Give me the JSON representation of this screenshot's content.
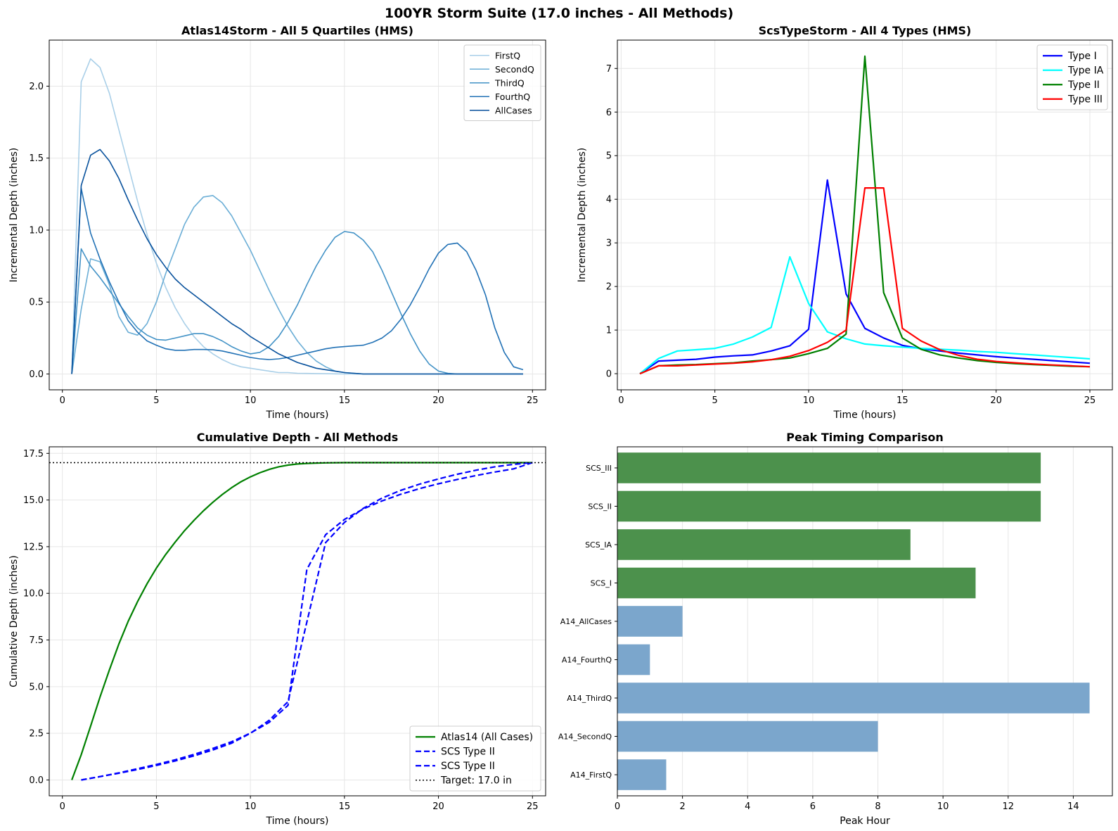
{
  "figure": {
    "suptitle": "100YR Storm Suite (17.0 inches - All Methods)"
  },
  "chart_data": [
    {
      "id": "atlas14",
      "type": "line",
      "title": "Atlas14Storm - All 5 Quartiles (HMS)",
      "xlabel": "Time (hours)",
      "ylabel": "Incremental Depth (inches)",
      "xlim": [
        -0.7,
        25.7
      ],
      "ylim": [
        -0.11,
        2.32
      ],
      "xticks": [
        0,
        5,
        10,
        15,
        20,
        25
      ],
      "xtick_labels": [
        "0",
        "5",
        "10",
        "15",
        "20",
        "25"
      ],
      "yticks": [
        0,
        0.5,
        1.0,
        1.5,
        2.0
      ],
      "ytick_labels": [
        "0.0",
        "0.5",
        "1.0",
        "1.5",
        "2.0"
      ],
      "grid": true,
      "legend_position": "top-right",
      "x": [
        0.5,
        1.0,
        1.5,
        2.0,
        2.5,
        3.0,
        3.5,
        4.0,
        4.5,
        5.0,
        5.5,
        6.0,
        6.5,
        7.0,
        7.5,
        8.0,
        8.5,
        9.0,
        9.5,
        10.0,
        10.5,
        11.0,
        11.5,
        12.0,
        12.5,
        13.0,
        13.5,
        14.0,
        14.5,
        15.0,
        15.5,
        16.0,
        16.5,
        17.0,
        17.5,
        18.0,
        18.5,
        19.0,
        19.5,
        20.0,
        20.5,
        21.0,
        21.5,
        22.0,
        22.5,
        23.0,
        23.5,
        24.0,
        24.5
      ],
      "series": [
        {
          "name": "FirstQ",
          "color": "#a9cfe8",
          "values": [
            0,
            2.03,
            2.19,
            2.13,
            1.95,
            1.7,
            1.45,
            1.2,
            0.97,
            0.77,
            0.6,
            0.46,
            0.35,
            0.26,
            0.19,
            0.14,
            0.1,
            0.07,
            0.05,
            0.04,
            0.03,
            0.02,
            0.01,
            0.01,
            0.005,
            0.004,
            0.003,
            0.002,
            0.001,
            0,
            0,
            0,
            0,
            0,
            0,
            0,
            0,
            0,
            0,
            0,
            0,
            0,
            0,
            0,
            0,
            0,
            0,
            0,
            0
          ]
        },
        {
          "name": "SecondQ",
          "color": "#6baed6",
          "values": [
            0,
            0.45,
            0.8,
            0.78,
            0.62,
            0.4,
            0.29,
            0.27,
            0.35,
            0.5,
            0.7,
            0.87,
            1.04,
            1.16,
            1.23,
            1.24,
            1.19,
            1.1,
            0.98,
            0.86,
            0.72,
            0.58,
            0.45,
            0.33,
            0.23,
            0.15,
            0.09,
            0.05,
            0.02,
            0.01,
            0.005,
            0,
            0,
            0,
            0,
            0,
            0,
            0,
            0,
            0,
            0,
            0,
            0,
            0,
            0,
            0,
            0,
            0,
            0
          ]
        },
        {
          "name": "ThirdQ",
          "color": "#4292c6",
          "values": [
            0,
            0.87,
            0.75,
            0.67,
            0.58,
            0.49,
            0.4,
            0.32,
            0.27,
            0.24,
            0.235,
            0.25,
            0.265,
            0.28,
            0.28,
            0.26,
            0.23,
            0.19,
            0.16,
            0.14,
            0.15,
            0.19,
            0.26,
            0.36,
            0.48,
            0.62,
            0.75,
            0.86,
            0.95,
            0.99,
            0.98,
            0.93,
            0.85,
            0.72,
            0.57,
            0.42,
            0.28,
            0.16,
            0.07,
            0.02,
            0.005,
            0,
            0,
            0,
            0,
            0,
            0,
            0,
            0
          ]
        },
        {
          "name": "FourthQ",
          "color": "#2171b5",
          "values": [
            0,
            1.29,
            0.98,
            0.8,
            0.64,
            0.5,
            0.37,
            0.29,
            0.23,
            0.2,
            0.175,
            0.165,
            0.165,
            0.17,
            0.17,
            0.168,
            0.16,
            0.145,
            0.13,
            0.115,
            0.105,
            0.1,
            0.105,
            0.115,
            0.13,
            0.145,
            0.16,
            0.175,
            0.185,
            0.19,
            0.195,
            0.2,
            0.22,
            0.25,
            0.3,
            0.38,
            0.48,
            0.6,
            0.73,
            0.84,
            0.9,
            0.91,
            0.85,
            0.72,
            0.55,
            0.32,
            0.15,
            0.05,
            0.03
          ]
        },
        {
          "name": "AllCases",
          "color": "#08519c",
          "values": [
            0,
            1.31,
            1.52,
            1.56,
            1.48,
            1.36,
            1.21,
            1.07,
            0.94,
            0.83,
            0.74,
            0.66,
            0.6,
            0.55,
            0.5,
            0.45,
            0.4,
            0.35,
            0.31,
            0.26,
            0.22,
            0.18,
            0.14,
            0.11,
            0.08,
            0.06,
            0.04,
            0.03,
            0.02,
            0.01,
            0.005,
            0,
            0,
            0,
            0,
            0,
            0,
            0,
            0,
            0,
            0,
            0,
            0,
            0,
            0,
            0,
            0,
            0,
            0
          ]
        }
      ]
    },
    {
      "id": "scs",
      "type": "line",
      "title": "ScsTypeStorm - All 4 Types (HMS)",
      "xlabel": "Time (hours)",
      "ylabel": "Incremental Depth (inches)",
      "xlim": [
        -0.2,
        26.2
      ],
      "ylim": [
        -0.37,
        7.65
      ],
      "xticks": [
        0,
        5,
        10,
        15,
        20,
        25
      ],
      "xtick_labels": [
        "0",
        "5",
        "10",
        "15",
        "20",
        "25"
      ],
      "yticks": [
        0,
        1,
        2,
        3,
        4,
        5,
        6,
        7
      ],
      "ytick_labels": [
        "0",
        "1",
        "2",
        "3",
        "4",
        "5",
        "6",
        "7"
      ],
      "grid": true,
      "legend_position": "top-right",
      "x": [
        1,
        2,
        3,
        4,
        5,
        6,
        7,
        8,
        9,
        10,
        11,
        12,
        13,
        14,
        15,
        16,
        17,
        18,
        19,
        20,
        21,
        22,
        23,
        24,
        25
      ],
      "series": [
        {
          "name": "Type I",
          "color": "#0000ff",
          "values": [
            0,
            0.29,
            0.31,
            0.33,
            0.38,
            0.41,
            0.43,
            0.52,
            0.64,
            1.02,
            4.44,
            1.83,
            1.04,
            0.82,
            0.65,
            0.57,
            0.52,
            0.47,
            0.43,
            0.39,
            0.36,
            0.33,
            0.3,
            0.27,
            0.24
          ]
        },
        {
          "name": "Type IA",
          "color": "#00ffff",
          "values": [
            0,
            0.35,
            0.52,
            0.55,
            0.58,
            0.68,
            0.84,
            1.06,
            2.68,
            1.61,
            0.96,
            0.8,
            0.68,
            0.64,
            0.61,
            0.58,
            0.56,
            0.54,
            0.51,
            0.49,
            0.46,
            0.43,
            0.4,
            0.37,
            0.34
          ]
        },
        {
          "name": "Type II",
          "color": "#008000",
          "values": [
            0,
            0.18,
            0.2,
            0.21,
            0.23,
            0.25,
            0.29,
            0.32,
            0.36,
            0.46,
            0.58,
            0.91,
            7.28,
            1.86,
            0.82,
            0.56,
            0.43,
            0.36,
            0.3,
            0.26,
            0.23,
            0.21,
            0.19,
            0.17,
            0.16
          ]
        },
        {
          "name": "Type III",
          "color": "#ff0000",
          "values": [
            0,
            0.18,
            0.18,
            0.2,
            0.22,
            0.24,
            0.27,
            0.32,
            0.4,
            0.53,
            0.72,
            1.0,
            4.26,
            4.26,
            1.04,
            0.75,
            0.55,
            0.42,
            0.33,
            0.28,
            0.25,
            0.22,
            0.2,
            0.18,
            0.16
          ]
        }
      ]
    },
    {
      "id": "cumulative",
      "type": "line",
      "title": "Cumulative Depth - All Methods",
      "xlabel": "Time (hours)",
      "ylabel": "Cumulative Depth (inches)",
      "xlim": [
        -0.7,
        25.7
      ],
      "ylim": [
        -0.85,
        17.85
      ],
      "xticks": [
        0,
        5,
        10,
        15,
        20,
        25
      ],
      "xtick_labels": [
        "0",
        "5",
        "10",
        "15",
        "20",
        "25"
      ],
      "yticks": [
        0,
        2.5,
        5.0,
        7.5,
        10.0,
        12.5,
        15.0,
        17.5
      ],
      "ytick_labels": [
        "0.0",
        "2.5",
        "5.0",
        "7.5",
        "10.0",
        "12.5",
        "15.0",
        "17.5"
      ],
      "grid": true,
      "legend_position": "bottom-right",
      "target": 17.0,
      "series": [
        {
          "name": "Atlas14 (All Cases)",
          "color": "#008000",
          "dash": "solid",
          "x": [
            0.5,
            1,
            1.5,
            2,
            2.5,
            3,
            3.5,
            4,
            4.5,
            5,
            5.5,
            6,
            6.5,
            7,
            7.5,
            8,
            8.5,
            9,
            9.5,
            10,
            10.5,
            11,
            11.5,
            12,
            12.5,
            13,
            13.5,
            14,
            15,
            16,
            17,
            18,
            19,
            20,
            21,
            22,
            23,
            24,
            25
          ],
          "values": [
            0,
            1.35,
            2.88,
            4.44,
            5.9,
            7.27,
            8.5,
            9.56,
            10.51,
            11.35,
            12.09,
            12.75,
            13.36,
            13.91,
            14.42,
            14.88,
            15.29,
            15.66,
            15.98,
            16.24,
            16.46,
            16.64,
            16.78,
            16.87,
            16.93,
            16.96,
            16.98,
            16.99,
            17.0,
            17.0,
            17.0,
            17.0,
            17.0,
            17.0,
            17.0,
            17.0,
            17.0,
            17.0,
            17.0
          ]
        },
        {
          "name": "SCS Type II",
          "color": "#0000ff",
          "dash": "dashed",
          "x": [
            1,
            2,
            3,
            4,
            5,
            6,
            7,
            8,
            9,
            10,
            11,
            12,
            13,
            14,
            15,
            16,
            17,
            18,
            19,
            20,
            21,
            22,
            23,
            24,
            25
          ],
          "values": [
            0,
            0.18,
            0.38,
            0.6,
            0.83,
            1.08,
            1.37,
            1.69,
            2.05,
            2.51,
            3.09,
            4.0,
            11.28,
            13.14,
            13.96,
            14.52,
            14.95,
            15.31,
            15.61,
            15.87,
            16.1,
            16.31,
            16.5,
            16.67,
            17.0
          ]
        },
        {
          "name": "SCS Type II",
          "color": "#0000ff",
          "dash": "dashed",
          "x": [
            1,
            2,
            3,
            4,
            5,
            6,
            7,
            8,
            9,
            10,
            11,
            12,
            13,
            14,
            15,
            16,
            17,
            18,
            19,
            20,
            21,
            22,
            23,
            24,
            25
          ],
          "values": [
            0,
            0.18,
            0.36,
            0.56,
            0.78,
            1.02,
            1.29,
            1.61,
            1.97,
            2.5,
            3.2,
            4.2,
            8.46,
            12.72,
            13.8,
            14.55,
            15.1,
            15.52,
            15.85,
            16.13,
            16.38,
            16.6,
            16.78,
            16.91,
            17.0
          ]
        },
        {
          "name": "Target: 17.0 in",
          "color": "#000000",
          "dash": "dotted",
          "x": [
            -0.7,
            25.7
          ],
          "values": [
            17.0,
            17.0
          ]
        }
      ]
    },
    {
      "id": "peak",
      "type": "bar",
      "orientation": "horizontal",
      "title": "Peak Timing Comparison",
      "xlabel": "Peak Hour",
      "ylabel": "",
      "xlim": [
        0,
        15.2
      ],
      "xticks": [
        0,
        2,
        4,
        6,
        8,
        10,
        12,
        14
      ],
      "xtick_labels": [
        "0",
        "2",
        "4",
        "6",
        "8",
        "10",
        "12",
        "14"
      ],
      "grid": true,
      "categories": [
        "A14_FirstQ",
        "A14_SecondQ",
        "A14_ThirdQ",
        "A14_FourthQ",
        "A14_AllCases",
        "SCS_I",
        "SCS_IA",
        "SCS_II",
        "SCS_III"
      ],
      "values": [
        1.5,
        8.0,
        14.5,
        1.0,
        2.0,
        11.0,
        9.0,
        13.0,
        13.0
      ],
      "colors": [
        "#7ba6cc",
        "#7ba6cc",
        "#7ba6cc",
        "#7ba6cc",
        "#7ba6cc",
        "#4c914c",
        "#4c914c",
        "#4c914c",
        "#4c914c"
      ]
    }
  ]
}
